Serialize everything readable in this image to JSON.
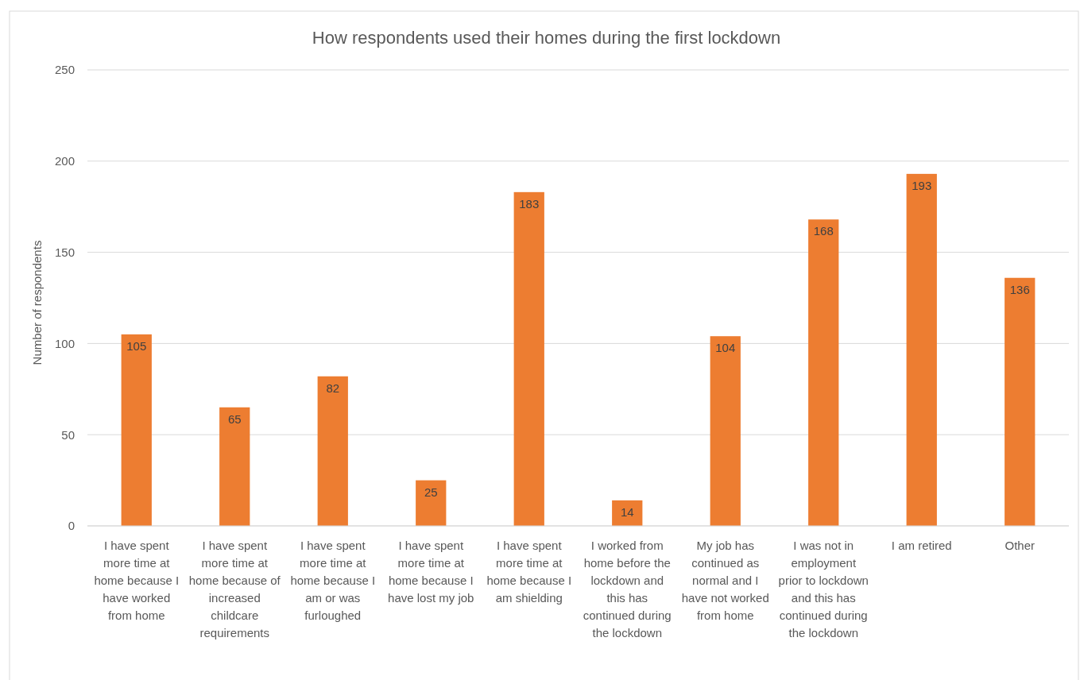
{
  "chart_data": {
    "type": "bar",
    "title": "How respondents used their homes during the first lockdown",
    "ylabel": "Number of respondents",
    "categories": [
      "I have spent more time at home because I have worked from home",
      "I have spent more time at home because of increased childcare requirements",
      "I have spent more time at home because I am or was furloughed",
      "I have spent more time at home because I have lost my job",
      "I have spent more time at home because I am shielding",
      "I worked from home before the lockdown and this has continued during the lockdown",
      "My job has continued as normal and I have not worked from home",
      "I was not in employment prior to lockdown and this has continued during the lockdown",
      "I am retired",
      "Other"
    ],
    "values": [
      105,
      65,
      82,
      25,
      183,
      14,
      104,
      168,
      193,
      136
    ],
    "color": "#ed7d31",
    "ylim": [
      0,
      250
    ],
    "yticks": [
      0,
      50,
      100,
      150,
      200,
      250
    ],
    "grid": "y",
    "data_labels": true
  }
}
